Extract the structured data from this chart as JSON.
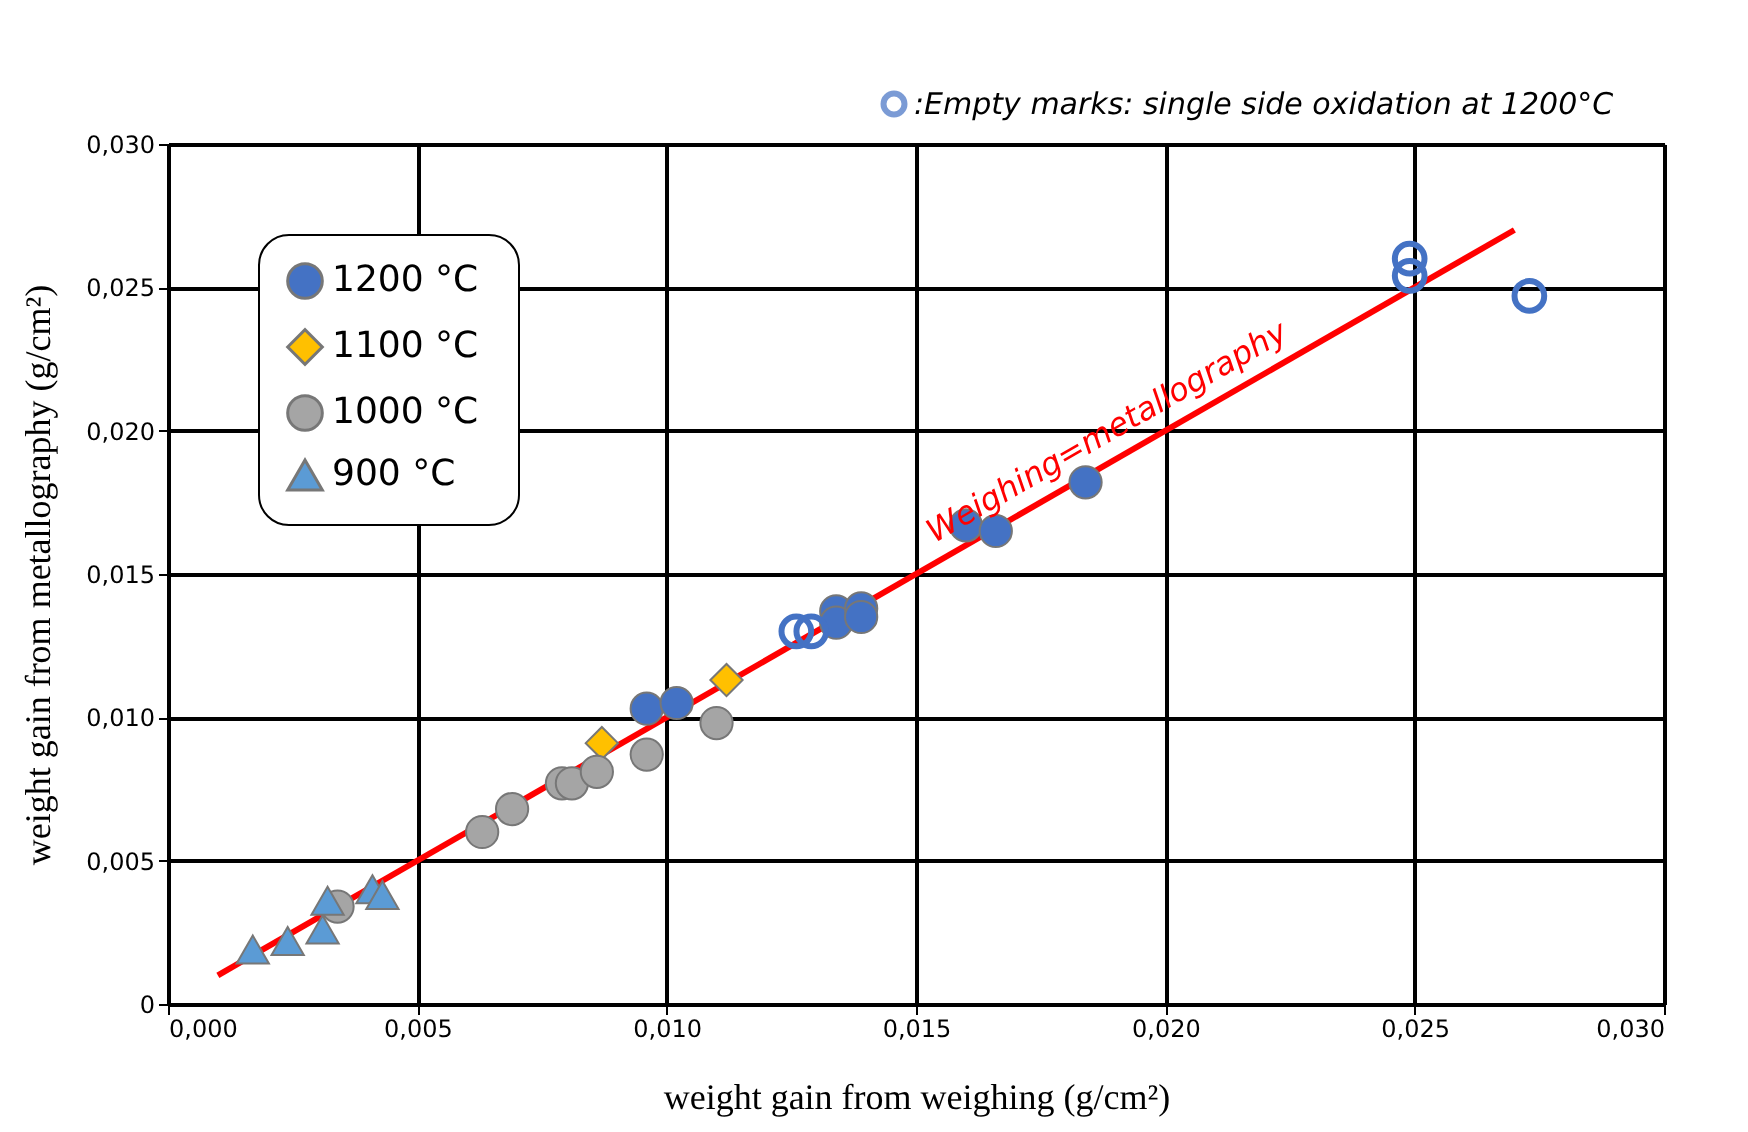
{
  "chart_data": {
    "type": "scatter",
    "xlabel": "weight gain from weighing (g/cm²)",
    "ylabel": "weight gain from metallography (g/cm²)",
    "xlim": [
      0,
      0.03
    ],
    "ylim": [
      0,
      0.03
    ],
    "xticks": [
      {
        "value": 0,
        "label": "0,000"
      },
      {
        "value": 0.005,
        "label": "0,005"
      },
      {
        "value": 0.01,
        "label": "0,010"
      },
      {
        "value": 0.015,
        "label": "0,015"
      },
      {
        "value": 0.02,
        "label": "0,020"
      },
      {
        "value": 0.025,
        "label": "0,025"
      },
      {
        "value": 0.03,
        "label": "0,030"
      }
    ],
    "yticks": [
      0,
      {
        "value": 0.005,
        "label": "0,005"
      },
      {
        "value": 0.01,
        "label": "0,010"
      },
      {
        "value": 0.015,
        "label": "0,015"
      },
      {
        "value": 0.02,
        "label": "0,020"
      },
      {
        "value": 0.025,
        "label": "0,025"
      },
      {
        "value": 0.03,
        "label": "0,030"
      }
    ],
    "grid": true,
    "legend": "top left",
    "series": [
      {
        "name": "1200  °C",
        "marker": "circle",
        "color": "#4472c4",
        "x": [
          0.0096,
          0.0102,
          0.0134,
          0.0134,
          0.0139,
          0.0139,
          0.016,
          0.0166,
          0.0184
        ],
        "values": [
          0.0103,
          0.0105,
          0.0137,
          0.0133,
          0.0138,
          0.0135,
          0.0167,
          0.0165,
          0.0182
        ]
      },
      {
        "name": "1100  °C",
        "marker": "diamond",
        "color": "#ffc000",
        "x": [
          0.0087,
          0.0112
        ],
        "values": [
          0.0091,
          0.0113
        ]
      },
      {
        "name": "1000  °C",
        "marker": "circle",
        "color": "#a5a5a5",
        "x": [
          0.0034,
          0.0063,
          0.0069,
          0.0079,
          0.0081,
          0.0086,
          0.0096,
          0.011
        ],
        "values": [
          0.0034,
          0.006,
          0.0068,
          0.0077,
          0.0077,
          0.0081,
          0.0087,
          0.0098
        ]
      },
      {
        "name": "900  °C",
        "marker": "triangle",
        "color": "#5b9bd5",
        "x": [
          0.0017,
          0.0024,
          0.0031,
          0.0032,
          0.0041,
          0.0043
        ],
        "values": [
          0.0019,
          0.0022,
          0.0026,
          0.0036,
          0.004,
          0.0038
        ]
      },
      {
        "type": "scatter",
        "marker": "circle",
        "color": "#4472c4",
        "x": [
          0.0126,
          0.0129,
          0.0249,
          0.0249,
          0.0273
        ],
        "values": [
          0.013,
          0.013,
          0.026,
          0.0254,
          0.0247
        ]
      },
      {
        "type": "line",
        "color": "#ff0000",
        "x": [
          0.001,
          0.027
        ],
        "values": [
          0.001,
          0.027
        ]
      }
    ],
    "annotations": [
      ":Empty marks: single side oxidation at 1200°C",
      {
        "text": "Weighing=metallography",
        "x": 0.0205,
        "y": 0.0205
      }
    ]
  }
}
